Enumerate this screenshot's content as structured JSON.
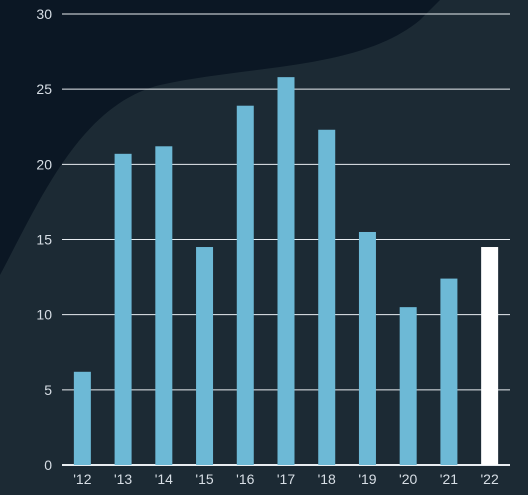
{
  "chart_data": {
    "type": "bar",
    "title": "",
    "xlabel": "",
    "ylabel": "",
    "categories": [
      "'12",
      "'13",
      "'14",
      "'15",
      "'16",
      "'17",
      "'18",
      "'19",
      "'20",
      "'21",
      "'22"
    ],
    "values": [
      6.2,
      20.7,
      21.2,
      14.5,
      23.9,
      25.8,
      22.3,
      15.5,
      10.5,
      12.4,
      14.5
    ],
    "ylim": [
      0,
      30
    ],
    "yticks": [
      0,
      5,
      10,
      15,
      20,
      25,
      30
    ],
    "grid": true,
    "legend": "none",
    "colors": {
      "bar": "#6db9d6",
      "highlight_bar": "#ffffff",
      "highlight_category": "'22",
      "background_dark": "#0b1724",
      "background_shape": "#1c2a34",
      "gridline": "#e8edf1",
      "text": "#d7dee5"
    }
  }
}
